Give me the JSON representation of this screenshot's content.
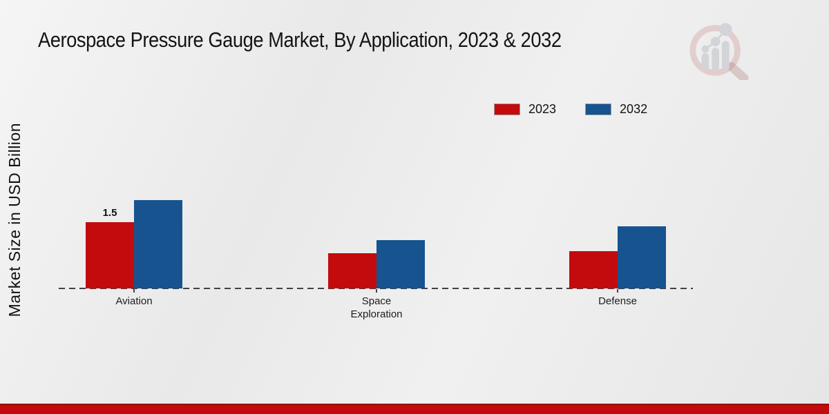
{
  "title": "Aerospace Pressure Gauge Market, By Application, 2023 & 2032",
  "y_axis_label": "Market Size in USD Billion",
  "legend": [
    {
      "label": "2023",
      "color": "#c30b0e"
    },
    {
      "label": "2032",
      "color": "#17538f"
    }
  ],
  "logo": {
    "name": "market-research-magnifier-logo"
  },
  "colors": {
    "series_2023": "#c30b0e",
    "series_2032": "#17538f",
    "footer_strip": "#c30b0b",
    "axis": "#414141"
  },
  "chart_data": {
    "type": "bar",
    "title": "Aerospace Pressure Gauge Market, By Application, 2023 & 2032",
    "categories": [
      "Aviation",
      "Space Exploration",
      "Defense"
    ],
    "series": [
      {
        "name": "2023",
        "color": "#c30b0e",
        "values": [
          1.5,
          0.8,
          0.85
        ],
        "labels": [
          "1.5",
          null,
          null
        ]
      },
      {
        "name": "2032",
        "color": "#17538f",
        "values": [
          2.0,
          1.1,
          1.4
        ],
        "labels": [
          null,
          null,
          null
        ]
      }
    ],
    "xlabel": "",
    "ylabel": "Market Size in USD Billion",
    "ylim": [
      0,
      2.5
    ],
    "grid": false,
    "y_axis_ticks_visible": false,
    "baseline_style": "dashed",
    "legend_position": "top-right"
  }
}
